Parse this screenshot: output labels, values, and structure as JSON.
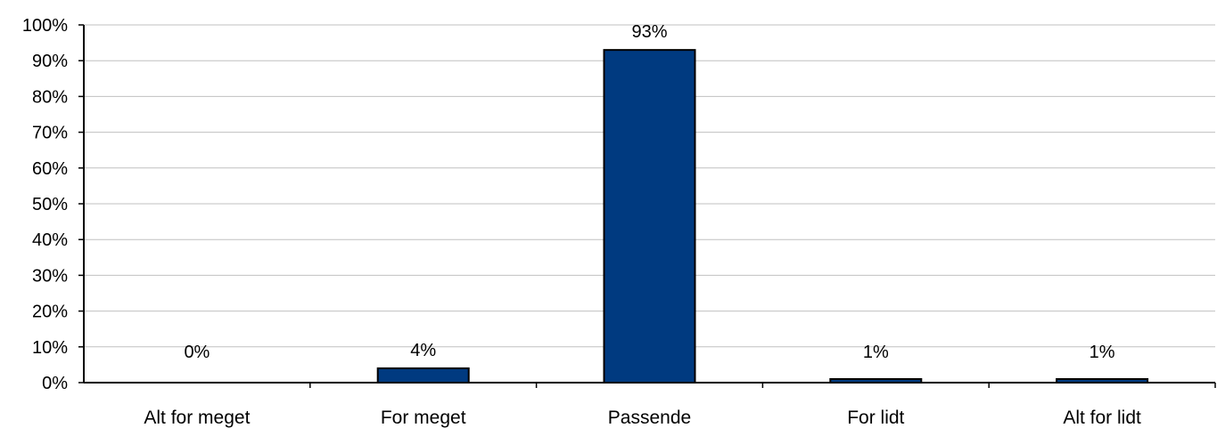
{
  "chart_data": {
    "type": "bar",
    "categories": [
      "Alt for meget",
      "For meget",
      "Passende",
      "For lidt",
      "Alt for lidt"
    ],
    "values": [
      0,
      4,
      93,
      1,
      1
    ],
    "data_labels": [
      "0%",
      "4%",
      "93%",
      "1%",
      "1%"
    ],
    "title": "",
    "xlabel": "",
    "ylabel": "",
    "ylim": [
      0,
      100
    ],
    "yticks": [
      0,
      10,
      20,
      30,
      40,
      50,
      60,
      70,
      80,
      90,
      100
    ],
    "ytick_labels": [
      "0%",
      "10%",
      "20%",
      "30%",
      "40%",
      "50%",
      "60%",
      "70%",
      "80%",
      "90%",
      "100%"
    ],
    "grid": true,
    "legend": "none",
    "colors": {
      "bar": "#003a80",
      "bar_edge": "#000000",
      "grid": "#c0c0c0",
      "axis": "#000000"
    }
  }
}
